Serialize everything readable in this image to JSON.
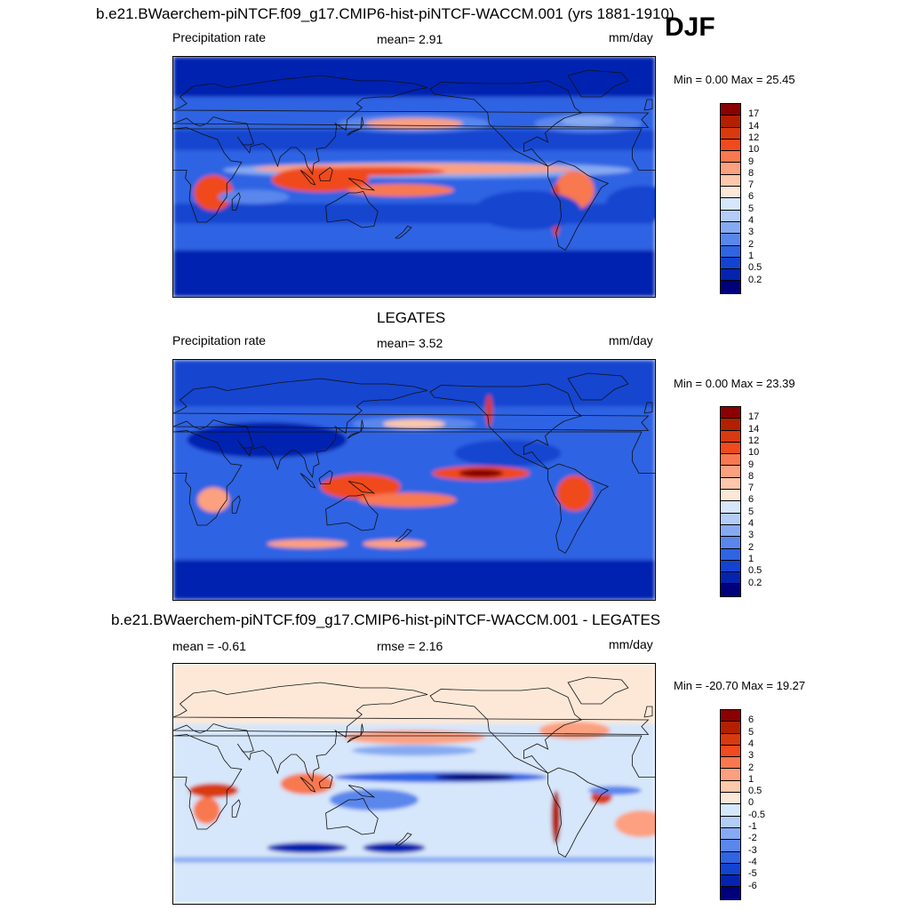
{
  "chart_data": [
    {
      "type": "heatmap",
      "title": "b.e21.BWaerchem-piNTCF.f09_g17.CMIP6-hist-piNTCF-WACCM.001 (yrs 1881-1910)",
      "season": "DJF",
      "variable": "Precipitation rate",
      "mean_label": "mean=   2.91",
      "units": "mm/day",
      "minmax": "Min =   0.00 Max =  25.45",
      "colorbar_levels": [
        "17",
        "14",
        "12",
        "10",
        "9",
        "8",
        "7",
        "6",
        "5",
        "4",
        "3",
        "2",
        "1",
        "0.5",
        "0.2"
      ],
      "colors": [
        "#8b0000",
        "#b22000",
        "#d83a10",
        "#f04a1e",
        "#f87850",
        "#fca080",
        "#fdc8ab",
        "#fde8d8",
        "#d6e6fb",
        "#b3cdf7",
        "#86aaf2",
        "#5a87ec",
        "#2f64e3",
        "#1244cf",
        "#0424b0",
        "#00007d"
      ]
    },
    {
      "type": "heatmap",
      "title": "LEGATES",
      "variable": "Precipitation rate",
      "mean_label": "mean=   3.52",
      "units": "mm/day",
      "minmax": "Min =   0.00 Max =  23.39",
      "colorbar_levels": [
        "17",
        "14",
        "12",
        "10",
        "9",
        "8",
        "7",
        "6",
        "5",
        "4",
        "3",
        "2",
        "1",
        "0.5",
        "0.2"
      ],
      "colors": [
        "#8b0000",
        "#b22000",
        "#d83a10",
        "#f04a1e",
        "#f87850",
        "#fca080",
        "#fdc8ab",
        "#fde8d8",
        "#d6e6fb",
        "#b3cdf7",
        "#86aaf2",
        "#5a87ec",
        "#2f64e3",
        "#1244cf",
        "#0424b0",
        "#00007d"
      ]
    },
    {
      "type": "heatmap",
      "title": "b.e21.BWaerchem-piNTCF.f09_g17.CMIP6-hist-piNTCF-WACCM.001 - LEGATES",
      "mean_label": "mean =  -0.61",
      "rmse_label": "rmse =   2.16",
      "units": "mm/day",
      "minmax": "Min = -20.70 Max =  19.27",
      "colorbar_levels": [
        "6",
        "5",
        "4",
        "3",
        "2",
        "1",
        "0.5",
        "0",
        "-0.5",
        "-1",
        "-2",
        "-3",
        "-4",
        "-5",
        "-6"
      ],
      "colors": [
        "#8b0000",
        "#b22000",
        "#d83a10",
        "#f04a1e",
        "#f87850",
        "#fca080",
        "#fdc8ab",
        "#fde8d8",
        "#d6e6fb",
        "#b3cdf7",
        "#86aaf2",
        "#5a87ec",
        "#2f64e3",
        "#1244cf",
        "#0424b0",
        "#00007d"
      ]
    }
  ]
}
